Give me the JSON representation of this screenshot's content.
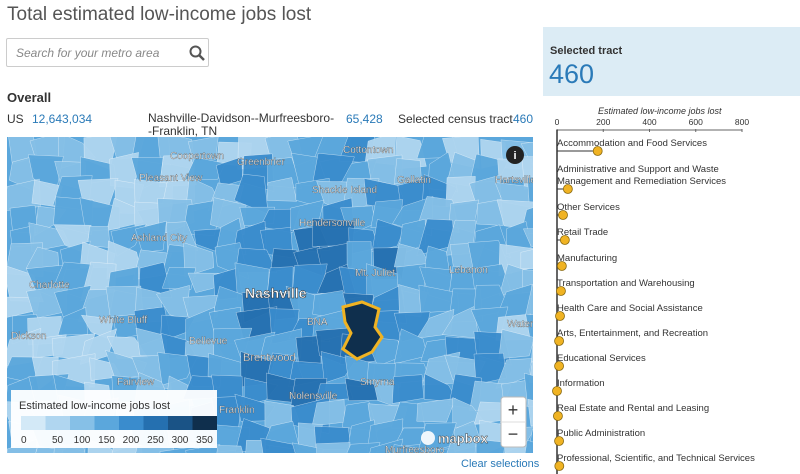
{
  "header": {
    "title": "Total estimated low-income jobs lost"
  },
  "search": {
    "placeholder": "Search for your metro area"
  },
  "overall": {
    "heading": "Overall",
    "rows": [
      [
        "US",
        "12,643,034"
      ],
      [
        "Nashville-Davidson--Murfreesboro--Franklin, TN",
        "65,428"
      ],
      [
        "Selected census tract",
        "460"
      ]
    ]
  },
  "map": {
    "labels": [
      "Coopertown",
      "Greenbrier",
      "Cottontown",
      "Pleasant View",
      "Shackle Island",
      "Gallatin",
      "Hartsville",
      "Hendersonville",
      "Ashland City",
      "Mt. Juliet",
      "Lebanon",
      "Charlotte",
      "Nashville",
      "White Bluff",
      "BNA",
      "Water",
      "Dickson",
      "Bellevue",
      "Brentwood",
      "Smyrna",
      "Fairview",
      "Franklin",
      "Nolensville",
      "Murfreesboro"
    ],
    "legend": {
      "title": "Estimated low-income jobs lost",
      "ticks": [
        0,
        50,
        100,
        150,
        200,
        250,
        300,
        350
      ],
      "colors": [
        "#d3e9f7",
        "#b0d6f0",
        "#86c0e7",
        "#5ba7dc",
        "#3a8ccd",
        "#2570b0",
        "#1a5386",
        "#0f2f4d"
      ]
    },
    "controls": {
      "zoom_in": "+",
      "zoom_out": "−",
      "info": "i",
      "logo": "mapbox"
    },
    "clear": "Clear selections"
  },
  "panel": {
    "label": "Selected tract",
    "value": "460"
  },
  "chart_data": {
    "type": "dot",
    "title": "Estimated low-income jobs lost",
    "categories": [
      "Accommodation and Food Services",
      "Administrative and Support and Waste Management and Remediation Services",
      "Other Services",
      "Retail Trade",
      "Manufacturing",
      "Transportation and Warehousing",
      "Health Care and Social Assistance",
      "Arts, Entertainment, and Recreation",
      "Educational Services",
      "Information",
      "Real Estate and Rental and Leasing",
      "Public Administration",
      "Professional, Scientific, and Technical Services"
    ],
    "values": [
      176,
      47,
      26,
      34,
      21,
      17,
      13,
      9,
      9,
      0,
      4,
      9,
      10
    ],
    "color": "#f0b323",
    "xlim": [
      0,
      800
    ],
    "xticks": [
      0,
      200,
      400,
      600,
      800
    ]
  }
}
